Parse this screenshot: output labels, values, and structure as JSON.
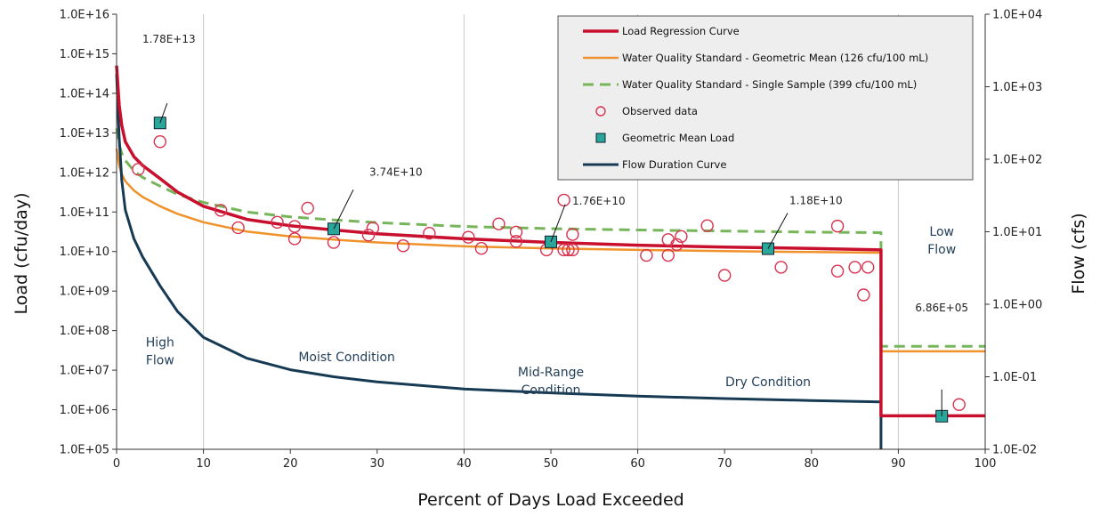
{
  "chart_data": {
    "type": "line",
    "xlabel": "Percent of Days Load Exceeded",
    "ylabel": "Load (cfu/day)",
    "y2label": "Flow (cfs)",
    "xlim": [
      0,
      100
    ],
    "ylim": [
      100000.0,
      1e+16
    ],
    "y2lim": [
      0.01,
      10000
    ],
    "log_y": true,
    "x_ticks": [
      "0",
      "10",
      "20",
      "30",
      "40",
      "50",
      "60",
      "70",
      "80",
      "90",
      "100"
    ],
    "y_ticks": [
      "1.0E+05",
      "1.0E+06",
      "1.0E+07",
      "1.0E+08",
      "1.0E+09",
      "1.0E+10",
      "1.0E+11",
      "1.0E+12",
      "1.0E+13",
      "1.0E+14",
      "1.0E+15",
      "1.0E+16"
    ],
    "y2_ticks": [
      "1.0E-02",
      "1.0E-01",
      "1.0E+00",
      "1.0E+01",
      "1.0E+02",
      "1.0E+03",
      "1.0E+04"
    ],
    "vertical_gridlines_at": [
      10,
      40,
      60,
      90
    ],
    "legend_position": "top-right",
    "colors": {
      "load_regression": "#c8102e",
      "wqs_geomean": "#f0922b",
      "wqs_single": "#77b55a",
      "observed": "#d8324f",
      "geomean_fill": "#2aa79b",
      "flow": "#163a54"
    },
    "series": [
      {
        "name": "Load Regression Curve",
        "key": "load_regression",
        "x": [
          0,
          0.3,
          0.6,
          1,
          2,
          3,
          5,
          7,
          10,
          15,
          20,
          25,
          30,
          40,
          50,
          60,
          70,
          80,
          88,
          88,
          100
        ],
        "y": [
          500000000000000.0,
          50000000000000.0,
          15000000000000.0,
          6000000000000.0,
          2500000000000.0,
          1500000000000.0,
          700000000000.0,
          320000000000.0,
          140000000000.0,
          65000000000.0,
          45000000000.0,
          35000000000.0,
          28000000000.0,
          21000000000.0,
          17000000000.0,
          14500000000.0,
          13000000000.0,
          12000000000.0,
          11000000000.0,
          700000.0,
          700000.0
        ]
      },
      {
        "name": "Water Quality Standard - Geometric Mean (126 cfu/100 mL)",
        "key": "wqs_geomean",
        "x": [
          0,
          0.3,
          0.6,
          1,
          2,
          3,
          5,
          7,
          10,
          15,
          20,
          25,
          30,
          40,
          50,
          60,
          70,
          80,
          88,
          88,
          100
        ],
        "y": [
          4000000000000.0,
          1500000000000.0,
          900000000000.0,
          600000000000.0,
          350000000000.0,
          240000000000.0,
          140000000000.0,
          90000000000.0,
          55000000000.0,
          32000000000.0,
          24000000000.0,
          20000000000.0,
          17000000000.0,
          13500000000.0,
          12000000000.0,
          11000000000.0,
          10200000000.0,
          9700000000.0,
          9300000000.0,
          30000000.0,
          30000000.0
        ]
      },
      {
        "name": "Water Quality Standard - Single Sample (399 cfu/100 mL)",
        "key": "wqs_single",
        "x": [
          0,
          0.3,
          0.6,
          1,
          2,
          3,
          5,
          7,
          10,
          15,
          20,
          25,
          30,
          40,
          50,
          60,
          70,
          80,
          88,
          88,
          100
        ],
        "y": [
          13000000000000.0,
          5000000000000.0,
          3000000000000.0,
          2000000000000.0,
          1100000000000.0,
          750000000000.0,
          450000000000.0,
          280000000000.0,
          175000000000.0,
          100000000000.0,
          75000000000.0,
          63000000000.0,
          54000000000.0,
          43000000000.0,
          38000000000.0,
          35000000000.0,
          33000000000.0,
          31000000000.0,
          30000000000.0,
          40000000.0,
          40000000.0
        ]
      },
      {
        "name": "Flow Duration Curve",
        "key": "flow",
        "axis": "y2",
        "x": [
          0,
          0.3,
          0.6,
          1,
          2,
          3,
          5,
          7,
          10,
          15,
          20,
          25,
          30,
          40,
          50,
          60,
          70,
          80,
          88,
          88
        ],
        "y": [
          1500,
          200,
          50,
          20,
          8,
          4.5,
          1.8,
          0.8,
          0.35,
          0.18,
          0.125,
          0.1,
          0.085,
          0.068,
          0.06,
          0.054,
          0.05,
          0.047,
          0.045,
          0.01
        ]
      }
    ],
    "observed": {
      "name": "Observed data",
      "x": [
        2.5,
        5,
        12,
        14,
        18.5,
        20.5,
        20.5,
        22,
        25,
        29,
        29.5,
        33,
        36,
        40.5,
        42,
        44,
        46,
        46,
        49.5,
        51.5,
        51.5,
        52,
        52.5,
        52.5,
        61,
        63.5,
        63.5,
        64.5,
        65,
        68,
        70,
        76.5,
        83,
        83,
        85,
        86,
        86.5
      ],
      "y": [
        1200000000000.0,
        6000000000000.0,
        110000000000.0,
        40000000000.0,
        55000000000.0,
        21000000000.0,
        43000000000.0,
        125000000000.0,
        17000000000.0,
        26000000000.0,
        39000000000.0,
        14000000000.0,
        29000000000.0,
        23000000000.0,
        12000000000.0,
        50000000000.0,
        18000000000.0,
        31000000000.0,
        11000000000.0,
        11000000000.0,
        200000000000.0,
        11000000000.0,
        27000000000.0,
        11000000000.0,
        8000000000.0,
        20000000000.0,
        8000000000.0,
        15000000000.0,
        24000000000.0,
        45000000000.0,
        2500000000.0,
        4000000000.0,
        44000000000.0,
        3200000000.0,
        4000000000.0,
        800000000.0,
        4000000000.0
      ]
    },
    "geometric_mean_load": {
      "name": "Geometric Mean Load",
      "points": [
        {
          "x": 5,
          "y": 17800000000000.0,
          "label": "1.78E+13"
        },
        {
          "x": 25,
          "y": 37400000000.0,
          "label": "3.74E+10"
        },
        {
          "x": 50,
          "y": 17600000000.0,
          "label": "1.76E+10"
        },
        {
          "x": 75,
          "y": 11800000000.0,
          "label": "1.18E+10"
        },
        {
          "x": 95,
          "y": 686000.0,
          "label": "6.86E+05"
        }
      ]
    },
    "extra_observed": [
      {
        "x": 97,
        "y": 1350000.0
      }
    ],
    "zones": [
      {
        "lines": [
          "High",
          "Flow"
        ],
        "x": 5,
        "y": 40000000.0
      },
      {
        "lines": [
          "Moist Condition"
        ],
        "x": 26.5,
        "y": 17000000.0
      },
      {
        "lines": [
          "Mid-Range",
          "Condition"
        ],
        "x": 50,
        "y": 7000000.0
      },
      {
        "lines": [
          "Dry Condition"
        ],
        "x": 75,
        "y": 4000000.0
      },
      {
        "lines": [
          "Low",
          "Flow"
        ],
        "x": 95,
        "y": 25000000000.0
      }
    ]
  }
}
